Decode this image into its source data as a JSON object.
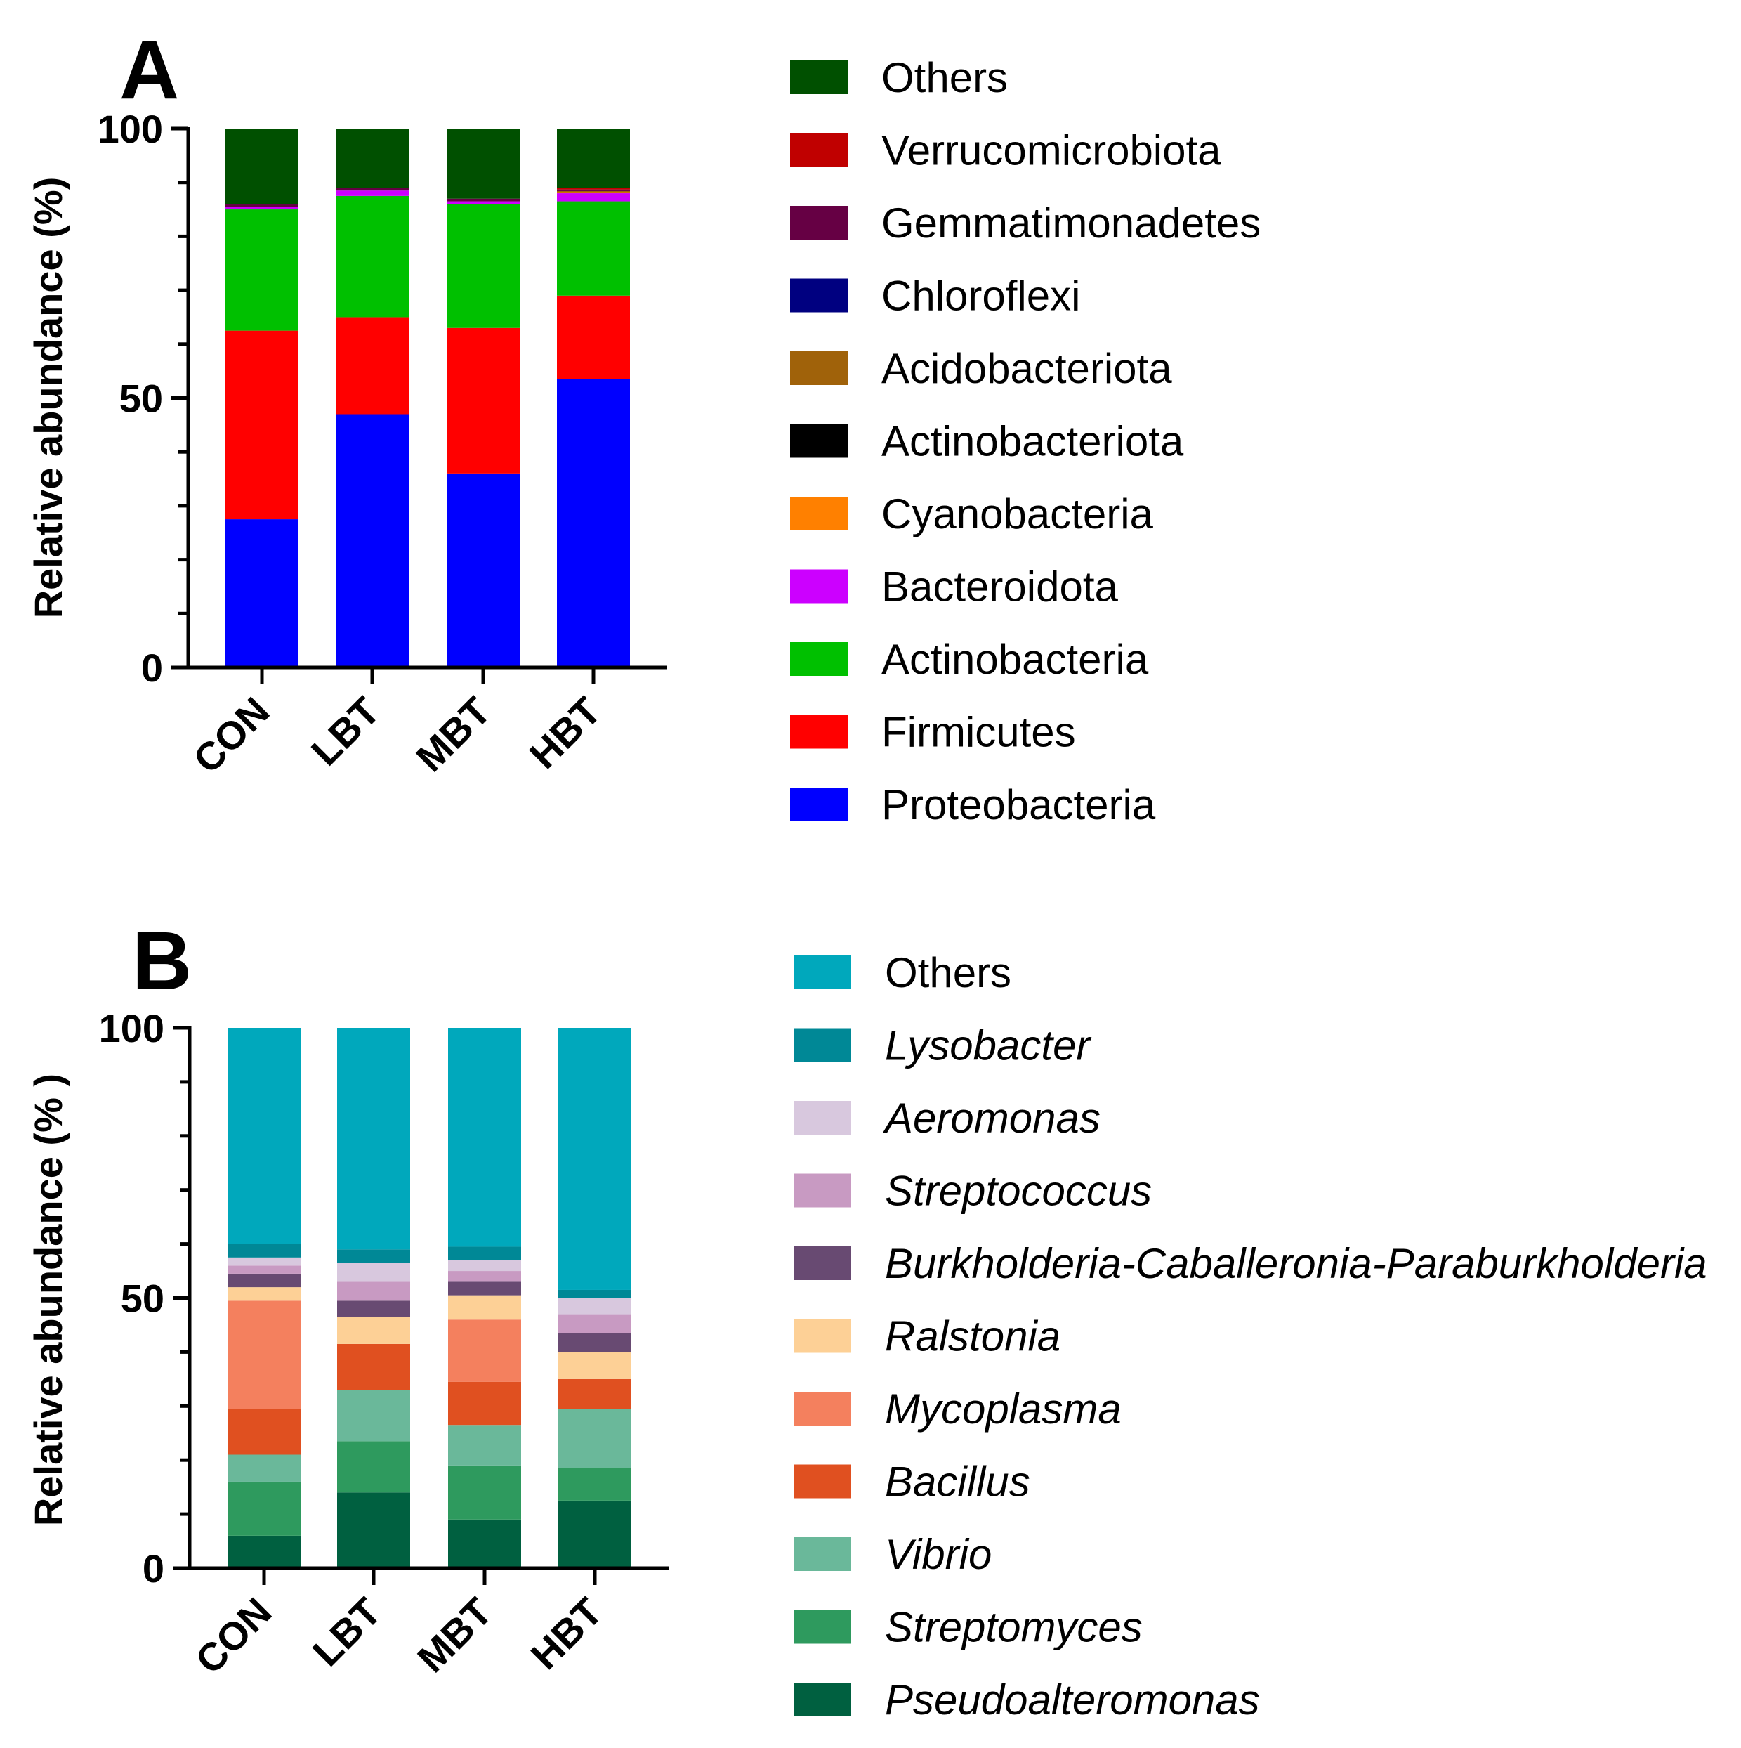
{
  "chart_data": [
    {
      "panel": "A",
      "type": "bar",
      "stacked": true,
      "title": "",
      "xlabel": "",
      "ylabel": "Relative abundance (%)",
      "ylim": [
        0,
        100
      ],
      "yticks": [
        0,
        50,
        100
      ],
      "categories": [
        "CON",
        "LBT",
        "MBT",
        "HBT"
      ],
      "legend_order": [
        "Others",
        "Verrucomicrobiota",
        "Gemmatimonadetes",
        "Chloroflexi",
        "Acidobacteriota",
        "Actinobacteriota",
        "Cyanobacteria",
        "Bacteroidota",
        "Actinobacteria",
        "Firmicutes",
        "Proteobacteria"
      ],
      "series": [
        {
          "name": "Proteobacteria",
          "color": "#0000ff",
          "values": [
            27.5,
            47.0,
            36.0,
            53.5
          ]
        },
        {
          "name": "Firmicutes",
          "color": "#ff0000",
          "values": [
            35.0,
            18.0,
            27.0,
            15.5
          ]
        },
        {
          "name": "Actinobacteria",
          "color": "#00c000",
          "values": [
            22.5,
            22.5,
            23.0,
            17.5
          ]
        },
        {
          "name": "Bacteroidota",
          "color": "#cc00ff",
          "values": [
            0.5,
            1.0,
            0.5,
            1.5
          ]
        },
        {
          "name": "Cyanobacteria",
          "color": "#ff8000",
          "values": [
            0.0,
            0.0,
            0.0,
            0.2
          ]
        },
        {
          "name": "Actinobacteriota",
          "color": "#000000",
          "values": [
            0.0,
            0.0,
            0.0,
            0.0
          ]
        },
        {
          "name": "Acidobacteriota",
          "color": "#a0620a",
          "values": [
            0.0,
            0.0,
            0.0,
            0.2
          ]
        },
        {
          "name": "Chloroflexi",
          "color": "#000080",
          "values": [
            0.0,
            0.0,
            0.0,
            0.0
          ]
        },
        {
          "name": "Gemmatimonadetes",
          "color": "#660044",
          "values": [
            0.5,
            0.5,
            0.5,
            0.3
          ]
        },
        {
          "name": "Verrucomicrobiota",
          "color": "#c00000",
          "values": [
            0.0,
            0.0,
            0.0,
            0.3
          ]
        },
        {
          "name": "Others",
          "color": "#005000",
          "values": [
            14.0,
            11.0,
            13.0,
            11.0
          ]
        }
      ]
    },
    {
      "panel": "B",
      "type": "bar",
      "stacked": true,
      "title": "",
      "xlabel": "",
      "ylabel": "Relative abundance (% )",
      "ylim": [
        0,
        100
      ],
      "yticks": [
        0,
        50,
        100
      ],
      "categories": [
        "CON",
        "LBT",
        "MBT",
        "HBT"
      ],
      "legend_italic": [
        "Lysobacter",
        "Aeromonas",
        "Streptococcus",
        "Burkholderia-Caballeronia-Paraburkholderia",
        "Ralstonia",
        "Mycoplasma",
        "Bacillus",
        "Vibrio",
        "Streptomyces",
        "Pseudoalteromonas"
      ],
      "legend_order": [
        "Others",
        "Lysobacter",
        "Aeromonas",
        "Streptococcus",
        "Burkholderia-Caballeronia-Paraburkholderia",
        "Ralstonia",
        "Mycoplasma",
        "Bacillus",
        "Vibrio",
        "Streptomyces",
        "Pseudoalteromonas"
      ],
      "series": [
        {
          "name": "Pseudoalteromonas",
          "color": "#006040",
          "values": [
            6.0,
            14.0,
            9.0,
            12.5
          ]
        },
        {
          "name": "Streptomyces",
          "color": "#2e9a5e",
          "values": [
            10.0,
            9.5,
            10.0,
            6.0
          ]
        },
        {
          "name": "Vibrio",
          "color": "#6ab89a",
          "values": [
            5.0,
            9.5,
            7.5,
            11.0
          ]
        },
        {
          "name": "Bacillus",
          "color": "#e05020",
          "values": [
            8.5,
            8.5,
            8.0,
            5.5
          ]
        },
        {
          "name": "Mycoplasma",
          "color": "#f4805e",
          "values": [
            20.0,
            0.0,
            11.5,
            0.0
          ]
        },
        {
          "name": "Ralstonia",
          "color": "#fdd096",
          "values": [
            2.5,
            5.0,
            4.5,
            5.0
          ]
        },
        {
          "name": "Burkholderia-Caballeronia-Paraburkholderia",
          "color": "#684a72",
          "values": [
            2.5,
            3.0,
            2.5,
            3.5
          ]
        },
        {
          "name": "Streptococcus",
          "color": "#c89ac2",
          "values": [
            1.5,
            3.5,
            2.0,
            3.5
          ]
        },
        {
          "name": "Aeromonas",
          "color": "#d8c8de",
          "values": [
            1.5,
            3.5,
            2.0,
            3.0
          ]
        },
        {
          "name": "Lysobacter",
          "color": "#008896",
          "values": [
            2.5,
            2.5,
            2.5,
            1.5
          ]
        },
        {
          "name": "Others",
          "color": "#00a8bc",
          "values": [
            40.0,
            41.0,
            40.5,
            48.5
          ]
        }
      ]
    }
  ]
}
